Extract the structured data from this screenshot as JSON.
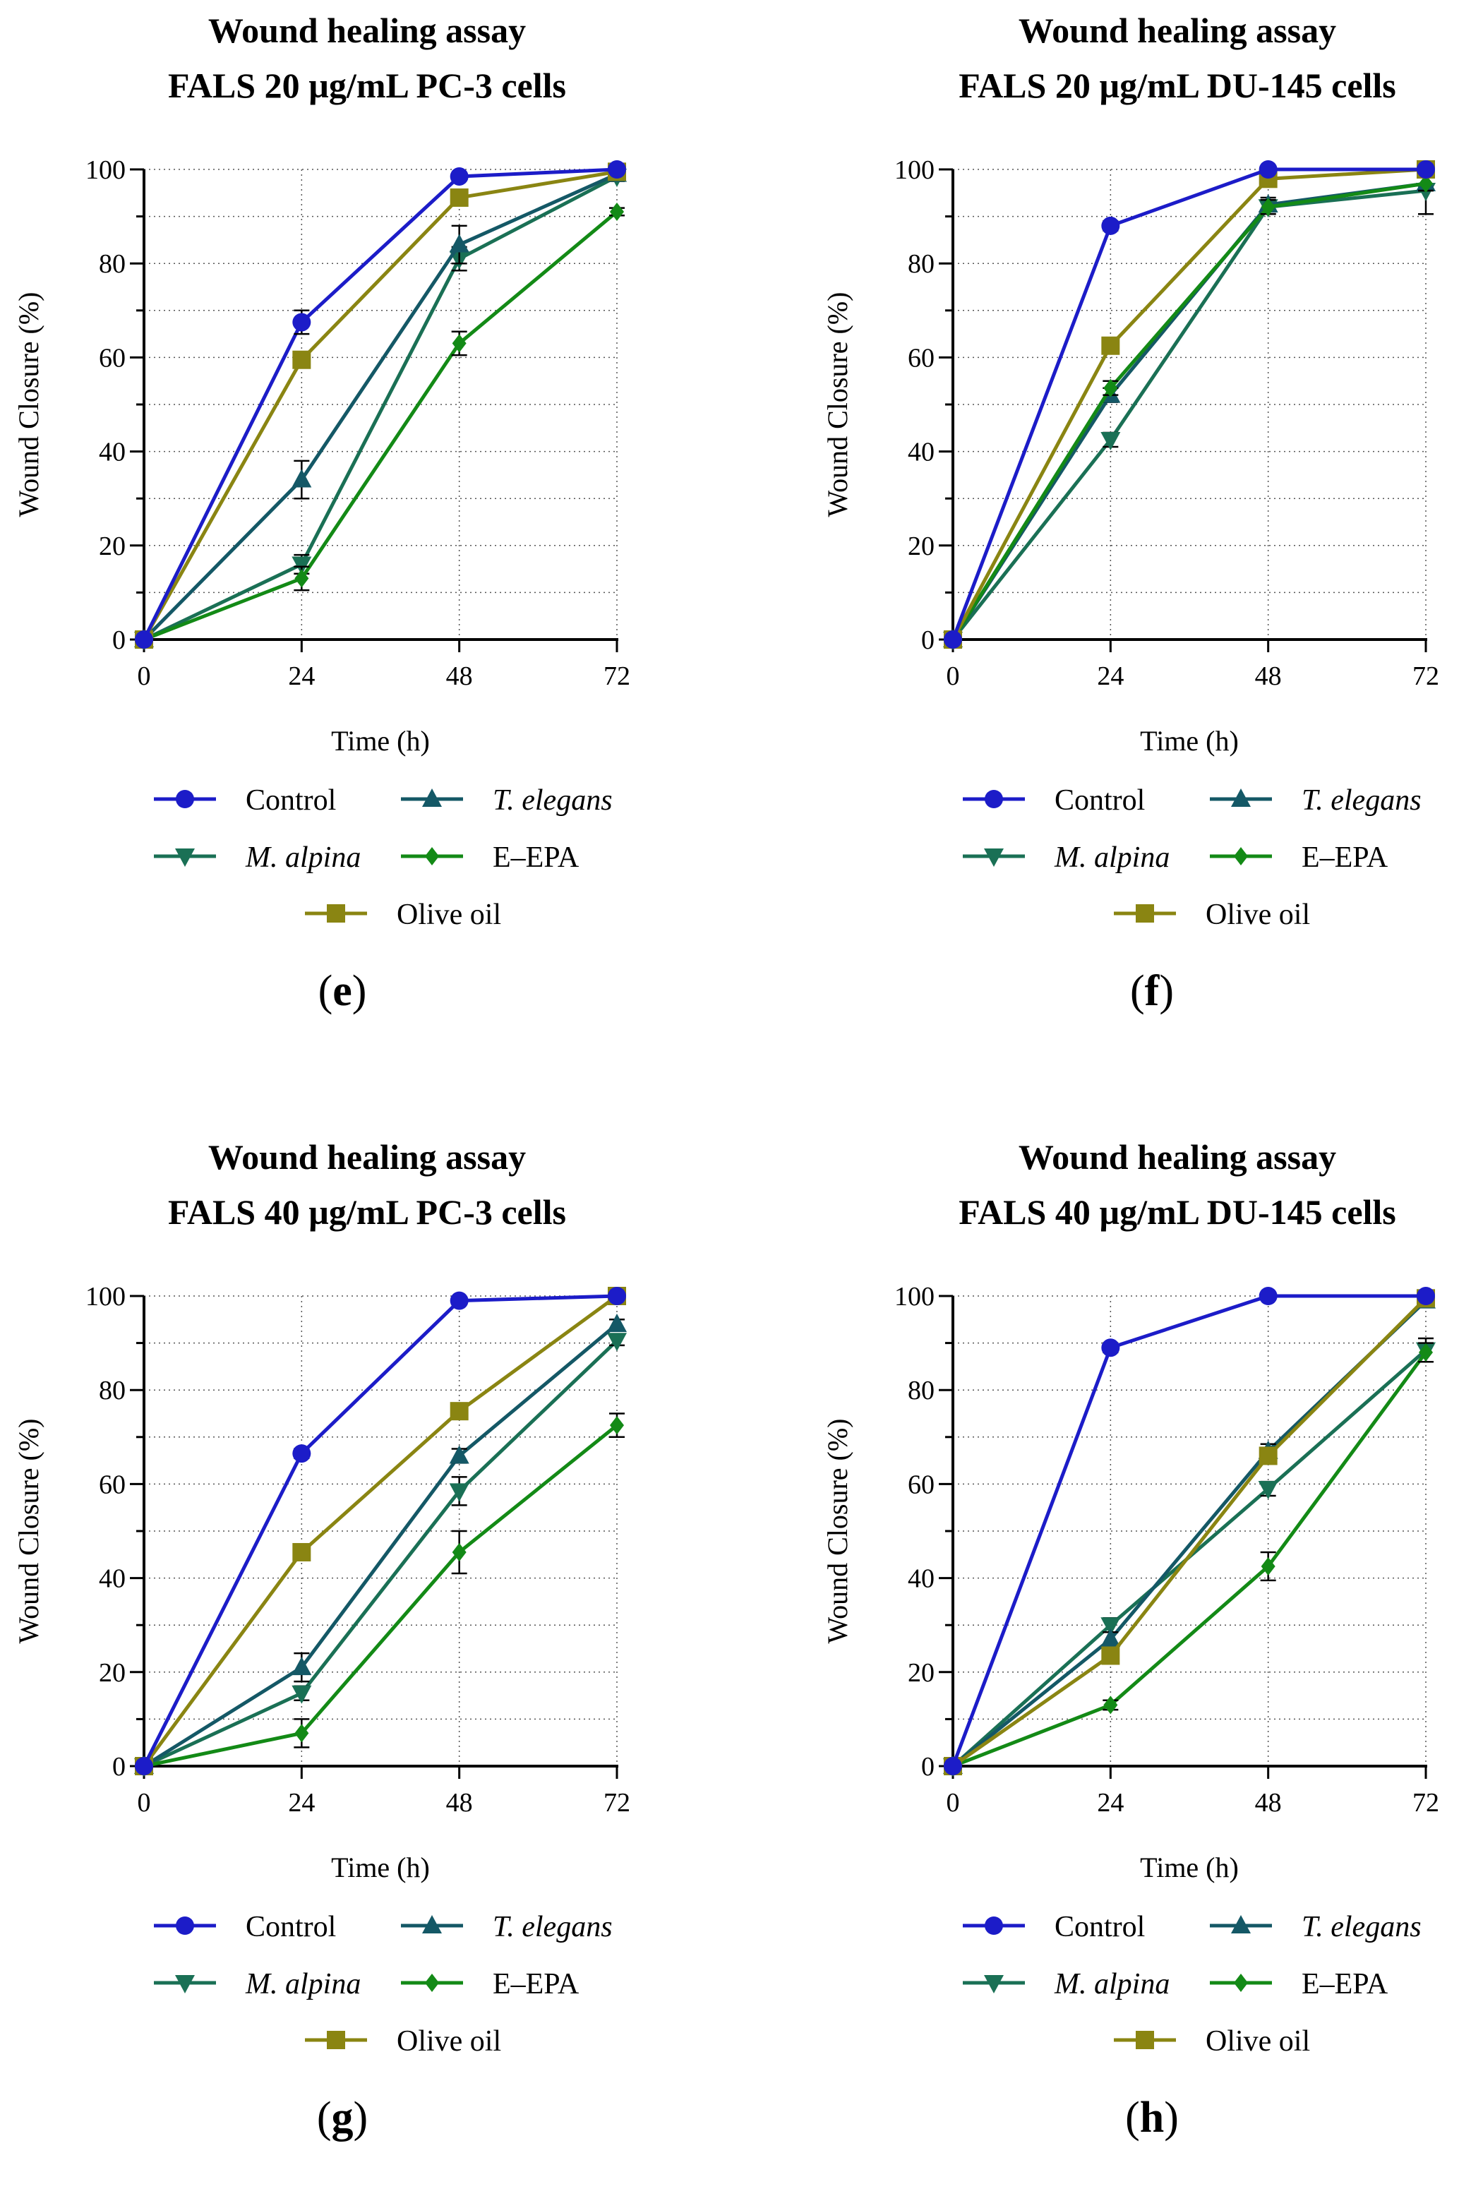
{
  "chart_data": [
    {
      "type": "line",
      "panel": "e",
      "title": [
        "Wound healing assay",
        "FALS 20 µg/mL PC-3 cells"
      ],
      "xlabel": "Time (h)",
      "ylabel": "Wound Closure (%)",
      "x": [
        0,
        24,
        48,
        72
      ],
      "x_ticks": [
        "0",
        "24",
        "48",
        "72"
      ],
      "y_ticks": [
        "0",
        "20",
        "40",
        "60",
        "80",
        "100"
      ],
      "xlim": [
        0,
        72
      ],
      "ylim": [
        0,
        100
      ],
      "grid": true,
      "series": [
        {
          "name": "Control",
          "values": [
            0,
            67.5,
            98.5,
            100
          ],
          "errors": [
            0,
            2.5,
            0.8,
            0.4
          ]
        },
        {
          "name": "T. elegans",
          "values": [
            0,
            34,
            84,
            99
          ],
          "errors": [
            0,
            4,
            4,
            1
          ]
        },
        {
          "name": "M. alpina",
          "values": [
            0,
            16,
            81,
            98.5
          ],
          "errors": [
            0,
            2,
            2.5,
            1
          ]
        },
        {
          "name": "E–EPA",
          "values": [
            0,
            13,
            63,
            91
          ],
          "errors": [
            0,
            2.5,
            2.5,
            0.8
          ]
        },
        {
          "name": "Olive oil",
          "values": [
            0,
            59.5,
            94,
            99.5
          ],
          "errors": [
            0,
            1.5,
            1,
            0.5
          ]
        }
      ]
    },
    {
      "type": "line",
      "panel": "f",
      "title": [
        "Wound healing assay",
        "FALS 20 µg/mL DU-145 cells"
      ],
      "xlabel": "Time (h)",
      "ylabel": "Wound Closure (%)",
      "x": [
        0,
        24,
        48,
        72
      ],
      "x_ticks": [
        "0",
        "24",
        "48",
        "72"
      ],
      "y_ticks": [
        "0",
        "20",
        "40",
        "60",
        "80",
        "100"
      ],
      "xlim": [
        0,
        72
      ],
      "ylim": [
        0,
        100
      ],
      "grid": true,
      "series": [
        {
          "name": "Control",
          "values": [
            0,
            88,
            100,
            100
          ],
          "errors": [
            0,
            1,
            0.5,
            0.5
          ]
        },
        {
          "name": "T. elegans",
          "values": [
            0,
            52,
            92.5,
            97
          ],
          "errors": [
            0,
            1.5,
            1.5,
            1.5
          ]
        },
        {
          "name": "M. alpina",
          "values": [
            0,
            42.5,
            92,
            95.5
          ],
          "errors": [
            0,
            1.5,
            1.5,
            5
          ]
        },
        {
          "name": "E–EPA",
          "values": [
            0,
            53.5,
            92,
            97
          ],
          "errors": [
            0,
            1.5,
            1.5,
            1.5
          ]
        },
        {
          "name": "Olive oil",
          "values": [
            0,
            62.5,
            98,
            100
          ],
          "errors": [
            0,
            1.5,
            1,
            0.5
          ]
        }
      ]
    },
    {
      "type": "line",
      "panel": "g",
      "title": [
        "Wound healing assay",
        "FALS 40 µg/mL PC-3 cells"
      ],
      "xlabel": "Time (h)",
      "ylabel": "Wound Closure (%)",
      "x": [
        0,
        24,
        48,
        72
      ],
      "x_ticks": [
        "0",
        "24",
        "48",
        "72"
      ],
      "y_ticks": [
        "0",
        "20",
        "40",
        "60",
        "80",
        "100"
      ],
      "xlim": [
        0,
        72
      ],
      "ylim": [
        0,
        100
      ],
      "grid": true,
      "series": [
        {
          "name": "Control",
          "values": [
            0,
            66.5,
            99,
            100
          ],
          "errors": [
            0,
            1,
            0.5,
            0.5
          ]
        },
        {
          "name": "T. elegans",
          "values": [
            0,
            21,
            66,
            94
          ],
          "errors": [
            0,
            3,
            1.5,
            1
          ]
        },
        {
          "name": "M. alpina",
          "values": [
            0,
            15.5,
            58.5,
            90.5
          ],
          "errors": [
            0,
            1.5,
            3,
            1
          ]
        },
        {
          "name": "E–EPA",
          "values": [
            0,
            7,
            45.5,
            72.5
          ],
          "errors": [
            0,
            3,
            4.5,
            2.5
          ]
        },
        {
          "name": "Olive oil",
          "values": [
            0,
            45.5,
            75.5,
            100
          ],
          "errors": [
            0,
            1.5,
            1,
            0.5
          ]
        }
      ]
    },
    {
      "type": "line",
      "panel": "h",
      "title": [
        "Wound healing assay",
        "FALS 40 µg/mL DU-145 cells"
      ],
      "xlabel": "Time (h)",
      "ylabel": "Wound Closure (%)",
      "x": [
        0,
        24,
        48,
        72
      ],
      "x_ticks": [
        "0",
        "24",
        "48",
        "72"
      ],
      "y_ticks": [
        "0",
        "20",
        "40",
        "60",
        "80",
        "100"
      ],
      "xlim": [
        0,
        72
      ],
      "ylim": [
        0,
        100
      ],
      "grid": true,
      "series": [
        {
          "name": "Control",
          "values": [
            0,
            89,
            100,
            100
          ],
          "errors": [
            0,
            1,
            0.5,
            0.5
          ]
        },
        {
          "name": "T. elegans",
          "values": [
            0,
            27,
            67,
            99
          ],
          "errors": [
            0,
            1.5,
            1.5,
            1
          ]
        },
        {
          "name": "M. alpina",
          "values": [
            0,
            30,
            59,
            88.5
          ],
          "errors": [
            0,
            1.5,
            1.5,
            2.5
          ]
        },
        {
          "name": "E–EPA",
          "values": [
            0,
            13,
            42.5,
            88
          ],
          "errors": [
            0,
            1,
            3,
            2
          ]
        },
        {
          "name": "Olive oil",
          "values": [
            0,
            23.5,
            66,
            99.5
          ],
          "errors": [
            0,
            1.5,
            1.5,
            0.5
          ]
        }
      ]
    }
  ],
  "series_style": [
    {
      "name": "Control",
      "color": "#1c1cc8",
      "marker": "circle",
      "italic": false
    },
    {
      "name": "T. elegans",
      "color": "#145866",
      "marker": "triangle-up",
      "italic": true
    },
    {
      "name": "M. alpina",
      "color": "#1a7055",
      "marker": "triangle-down",
      "italic": true
    },
    {
      "name": "E–EPA",
      "color": "#138a16",
      "marker": "diamond",
      "italic": false
    },
    {
      "name": "Olive oil",
      "color": "#8a8512",
      "marker": "square",
      "italic": false
    }
  ]
}
